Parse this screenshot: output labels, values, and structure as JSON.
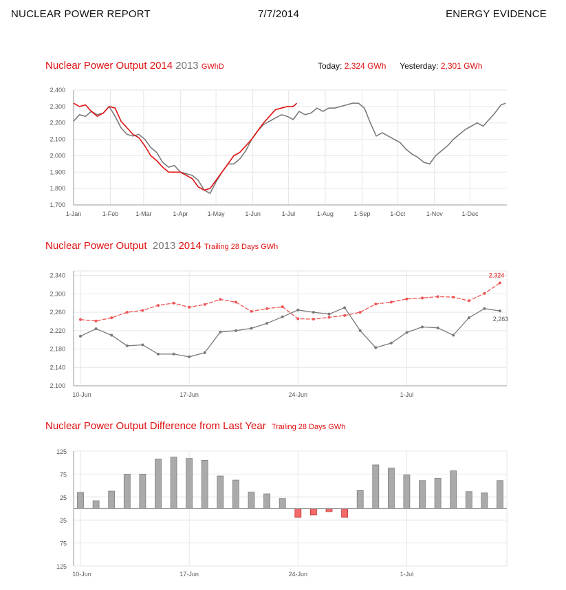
{
  "header": {
    "left": "NUCLEAR POWER REPORT",
    "date": "7/7/2014",
    "right": "ENERGY EVIDENCE"
  },
  "colors": {
    "current": "#e01010",
    "previous": "#7a7a7a",
    "prev_bars": "#aaaaaa",
    "neg_bars": "#f26a6a"
  },
  "chart1": {
    "title": "Nuclear Power Output 2014",
    "title_gray": "2013",
    "unit": "GWhD",
    "today_label": "Today:",
    "today_value": "2,324 GWh",
    "yesterday_label": "Yesterday:",
    "yesterday_value": "2,301 GWh"
  },
  "chart2": {
    "title": "Nuclear Power Output",
    "title_gray": "2013",
    "title_red": "2014",
    "subtitle": "Trailing 28 Days GWh"
  },
  "chart3": {
    "title": "Nuclear Power Output Difference from Last Year",
    "subtitle": "Trailing 28 Days GWh"
  },
  "chart_data": [
    {
      "type": "line",
      "ylim": [
        1700,
        2400
      ],
      "yticks": [
        "1,700",
        "1,800",
        "1,900",
        "2,000",
        "2,100",
        "2,200",
        "2,300",
        "2,400"
      ],
      "xtick_labels": [
        "1-Jan",
        "1-Feb",
        "1-Mar",
        "1-Apr",
        "1-May",
        "1-Jun",
        "1-Jul",
        "1-Aug",
        "1-Sep",
        "1-Oct",
        "1-Nov",
        "1-Dec"
      ],
      "xtick_days": [
        0,
        31,
        59,
        90,
        120,
        151,
        181,
        212,
        243,
        273,
        304,
        334
      ],
      "x_days": 365,
      "grid": true,
      "series": [
        {
          "name": "2014",
          "color": "#e01010",
          "x": [
            0,
            5,
            10,
            15,
            20,
            25,
            30,
            35,
            40,
            45,
            50,
            55,
            60,
            65,
            70,
            75,
            80,
            85,
            90,
            95,
            100,
            105,
            110,
            115,
            120,
            125,
            130,
            135,
            140,
            145,
            150,
            155,
            160,
            165,
            170,
            175,
            180,
            185,
            188
          ],
          "y": [
            2320,
            2300,
            2310,
            2270,
            2240,
            2260,
            2300,
            2290,
            2210,
            2170,
            2130,
            2110,
            2060,
            2000,
            1970,
            1930,
            1900,
            1900,
            1900,
            1880,
            1860,
            1810,
            1790,
            1800,
            1850,
            1900,
            1950,
            2000,
            2020,
            2060,
            2100,
            2150,
            2200,
            2240,
            2280,
            2290,
            2300,
            2300,
            2320
          ]
        },
        {
          "name": "2013",
          "color": "#7a7a7a",
          "x": [
            0,
            5,
            10,
            15,
            20,
            25,
            30,
            35,
            40,
            45,
            50,
            55,
            60,
            65,
            70,
            75,
            80,
            85,
            90,
            95,
            100,
            105,
            110,
            115,
            120,
            125,
            130,
            135,
            140,
            145,
            150,
            155,
            160,
            165,
            170,
            175,
            180,
            185,
            190,
            195,
            200,
            205,
            210,
            215,
            220,
            225,
            230,
            235,
            240,
            245,
            250,
            255,
            260,
            265,
            270,
            275,
            280,
            285,
            290,
            295,
            300,
            305,
            310,
            315,
            320,
            325,
            330,
            335,
            340,
            345,
            350,
            355,
            360,
            364
          ],
          "y": [
            2210,
            2250,
            2240,
            2270,
            2250,
            2260,
            2300,
            2240,
            2170,
            2130,
            2120,
            2130,
            2100,
            2050,
            2020,
            1960,
            1930,
            1940,
            1900,
            1890,
            1880,
            1850,
            1790,
            1770,
            1840,
            1900,
            1950,
            1950,
            1980,
            2030,
            2100,
            2150,
            2190,
            2210,
            2230,
            2250,
            2240,
            2220,
            2270,
            2250,
            2260,
            2290,
            2270,
            2290,
            2290,
            2300,
            2310,
            2320,
            2320,
            2290,
            2200,
            2120,
            2140,
            2120,
            2100,
            2080,
            2040,
            2010,
            1990,
            1960,
            1950,
            2000,
            2030,
            2060,
            2100,
            2130,
            2160,
            2180,
            2200,
            2180,
            2220,
            2260,
            2310,
            2320
          ]
        }
      ]
    },
    {
      "type": "line",
      "ylim": [
        2100,
        2350
      ],
      "yticks": [
        "2,100",
        "2,140",
        "2,180",
        "2,220",
        "2,260",
        "2,300",
        "2,340"
      ],
      "categories": [
        "10-Jun",
        "11-Jun",
        "12-Jun",
        "13-Jun",
        "14-Jun",
        "15-Jun",
        "16-Jun",
        "17-Jun",
        "18-Jun",
        "19-Jun",
        "20-Jun",
        "21-Jun",
        "22-Jun",
        "23-Jun",
        "24-Jun",
        "25-Jun",
        "26-Jun",
        "27-Jun",
        "28-Jun",
        "29-Jun",
        "30-Jun",
        "1-Jul",
        "2-Jul",
        "3-Jul",
        "4-Jul",
        "5-Jul",
        "6-Jul",
        "7-Jul"
      ],
      "xtick_labels": [
        "10-Jun",
        "17-Jun",
        "24-Jun",
        "1-Jul"
      ],
      "xtick_index": [
        0,
        7,
        14,
        21
      ],
      "grid": true,
      "end_labels": {
        "2014": "2,324",
        "2013": "2,263"
      },
      "series": [
        {
          "name": "2014",
          "color": "#ee5555",
          "values": [
            2244,
            2241,
            2248,
            2260,
            2264,
            2275,
            2280,
            2271,
            2277,
            2288,
            2282,
            2262,
            2268,
            2272,
            2246,
            2245,
            2249,
            2253,
            2260,
            2278,
            2282,
            2289,
            2291,
            2294,
            2293,
            2285,
            2301,
            2324
          ]
        },
        {
          "name": "2013",
          "color": "#7a7a7a",
          "values": [
            2208,
            2224,
            2210,
            2187,
            2189,
            2169,
            2169,
            2163,
            2172,
            2217,
            2220,
            2225,
            2236,
            2250,
            2265,
            2260,
            2256,
            2270,
            2220,
            2183,
            2193,
            2216,
            2228,
            2226,
            2210,
            2248,
            2268,
            2263
          ]
        }
      ]
    },
    {
      "type": "bar",
      "ylim": [
        -125,
        125
      ],
      "yticks": [
        "125",
        "75",
        "25",
        "25",
        "75",
        "125"
      ],
      "ytick_values": [
        125,
        75,
        25,
        -25,
        -75,
        -125
      ],
      "categories": [
        "10-Jun",
        "11-Jun",
        "12-Jun",
        "13-Jun",
        "14-Jun",
        "15-Jun",
        "16-Jun",
        "17-Jun",
        "18-Jun",
        "19-Jun",
        "20-Jun",
        "21-Jun",
        "22-Jun",
        "23-Jun",
        "24-Jun",
        "25-Jun",
        "26-Jun",
        "27-Jun",
        "28-Jun",
        "29-Jun",
        "30-Jun",
        "1-Jul",
        "2-Jul",
        "3-Jul",
        "4-Jul",
        "5-Jul",
        "6-Jul",
        "7-Jul"
      ],
      "xtick_labels": [
        "10-Jun",
        "17-Jun",
        "24-Jun",
        "1-Jul"
      ],
      "xtick_index": [
        0,
        7,
        14,
        21
      ],
      "grid": true,
      "values": [
        35,
        17,
        38,
        75,
        75,
        108,
        112,
        109,
        105,
        71,
        62,
        36,
        32,
        22,
        -19,
        -14,
        -7,
        -19,
        39,
        95,
        88,
        73,
        61,
        66,
        82,
        37,
        34,
        61
      ]
    }
  ]
}
